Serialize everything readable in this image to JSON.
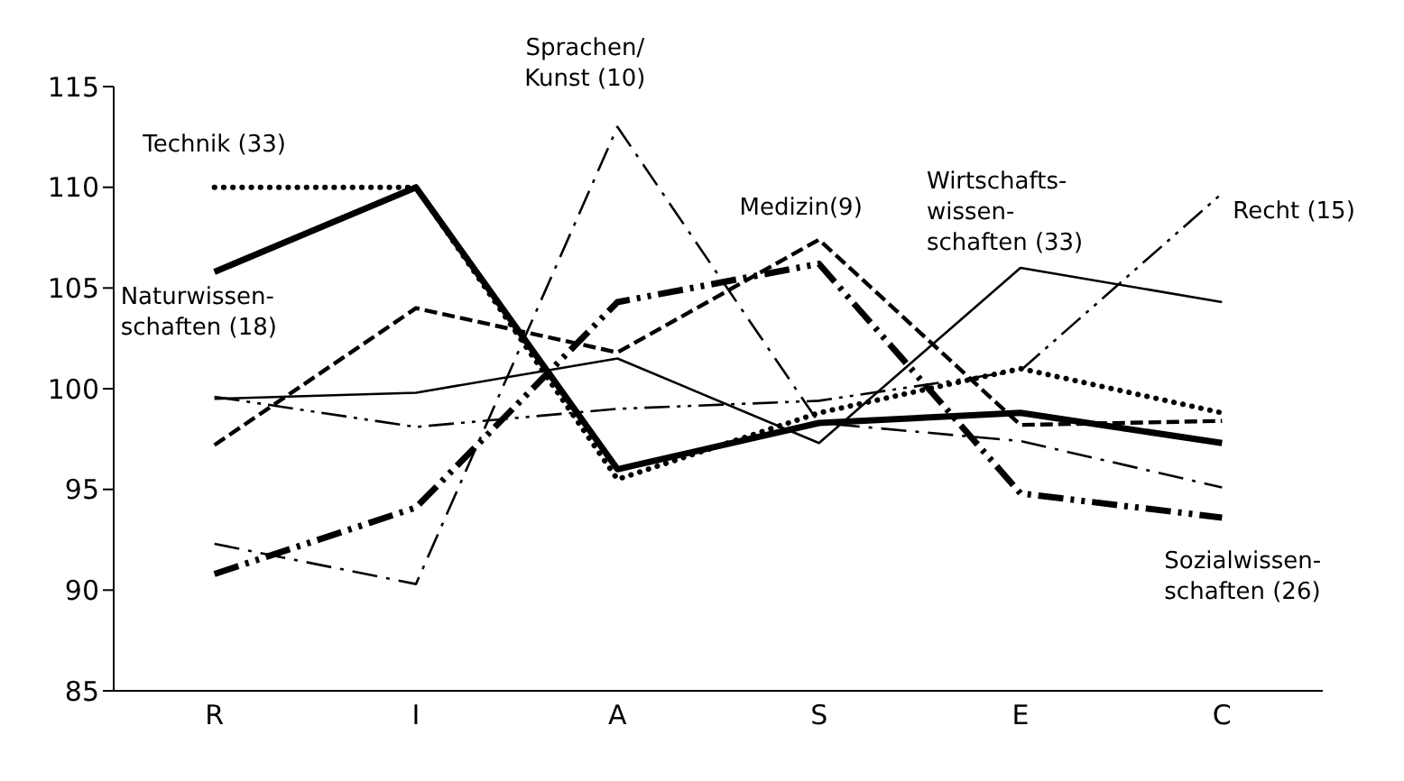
{
  "chart_data": {
    "type": "line",
    "categories": [
      "R",
      "I",
      "A",
      "S",
      "E",
      "C"
    ],
    "ylim": [
      85,
      115
    ],
    "yticks": [
      85,
      90,
      95,
      100,
      105,
      110,
      115
    ],
    "marker": "none",
    "series": [
      {
        "name": "Technik (33)",
        "color": "#000000",
        "line_style": "dotted",
        "values": [
          110,
          110,
          95.5,
          98.8,
          101,
          98.8
        ]
      },
      {
        "name": "Naturwissen-\nschaften (18)",
        "color": "#000000",
        "line_style": "solid",
        "values": [
          105.8,
          110,
          96,
          98.3,
          98.8,
          97.3
        ]
      },
      {
        "name": "Sprachen/\nKunst (10)",
        "color": "#000000",
        "line_style": "dashdot",
        "values": [
          92.3,
          90.3,
          113,
          98.3,
          97.4,
          95.1
        ]
      },
      {
        "name": "Medizin(9)",
        "color": "#000000",
        "line_style": "dashed",
        "values": [
          97.2,
          104,
          101.8,
          107.4,
          98.2,
          98.4
        ]
      },
      {
        "name": "Wirtschafts-\nwissen-\nschaften (33)",
        "color": "#000000",
        "line_style": "solid",
        "values": [
          99.5,
          99.8,
          101.5,
          97.3,
          106,
          104.3
        ]
      },
      {
        "name": "Recht (15)",
        "color": "#000000",
        "line_style": "dashdotdot",
        "values": [
          99.6,
          98.1,
          99,
          99.4,
          100.9,
          109.7
        ]
      },
      {
        "name": "Sozialwissen-\nschaften (26)",
        "color": "#000000",
        "line_style": "dashdotdot",
        "values": [
          90.8,
          94.1,
          104.3,
          106.2,
          94.8,
          93.6
        ]
      }
    ]
  }
}
